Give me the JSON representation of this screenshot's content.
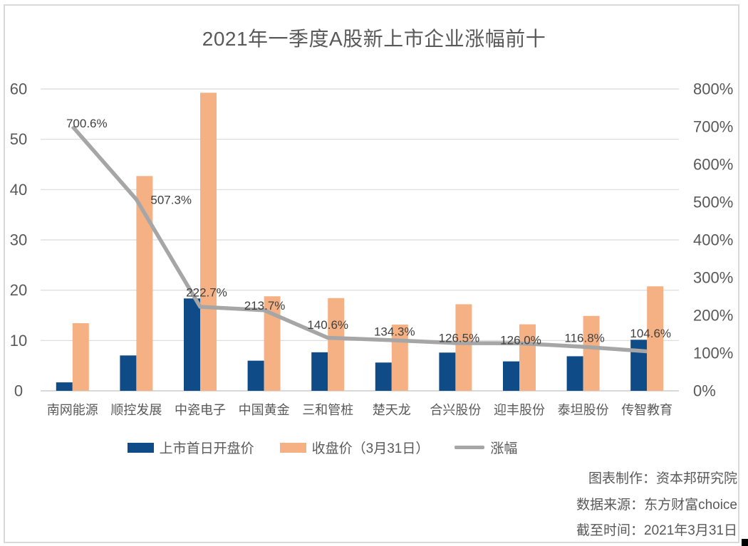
{
  "title": "2021年一季度A股新上市企业涨幅前十",
  "legend": {
    "items": [
      {
        "label": "上市首日开盘价",
        "color": "#0F4C87",
        "swatch": "bar"
      },
      {
        "label": "收盘价（3月31日）",
        "color": "#F5B183",
        "swatch": "bar"
      },
      {
        "label": "涨幅",
        "color": "#A6A6A6",
        "swatch": "line"
      }
    ]
  },
  "footer": {
    "lines": [
      "图表制作：资本邦研究院",
      "数据来源：东方财富choice",
      "截至时间：2021年3月31日"
    ]
  },
  "colors": {
    "bar_open": "#0F4C87",
    "bar_close": "#F5B183",
    "gain_line": "#A6A6A6",
    "gridline": "#D9D9D9",
    "axis_text": "#595959"
  },
  "chart_data": {
    "type": "bar",
    "subtype": "combo-bar-line-dual-axis",
    "title": "2021年一季度A股新上市企业涨幅前十",
    "categories": [
      "南网能源",
      "顺控发展",
      "中瓷电子",
      "中国黄金",
      "三和管桩",
      "楚天龙",
      "合兴股份",
      "迎丰股份",
      "泰坦股份",
      "传智教育"
    ],
    "series": [
      {
        "name": "上市首日开盘价",
        "type": "bar",
        "axis": "left",
        "color": "#0F4C87",
        "values": [
          1.68,
          7.03,
          18.36,
          5.99,
          7.66,
          5.62,
          7.6,
          5.85,
          6.87,
          10.15
        ]
      },
      {
        "name": "收盘价（3月31日）",
        "type": "bar",
        "axis": "left",
        "color": "#F5B183",
        "values": [
          13.45,
          42.69,
          59.25,
          18.79,
          18.43,
          13.17,
          17.21,
          13.22,
          14.89,
          20.77
        ]
      },
      {
        "name": "涨幅",
        "type": "line",
        "axis": "right",
        "color": "#A6A6A6",
        "values": [
          700.6,
          507.3,
          222.7,
          213.7,
          140.6,
          134.3,
          126.5,
          126.0,
          116.8,
          104.6
        ],
        "labels": [
          "700.6%",
          "507.3%",
          "222.7%",
          "213.7%",
          "140.6%",
          "134.3%",
          "126.5%",
          "126.0%",
          "116.8%",
          "104.6%"
        ]
      }
    ],
    "left_axis": {
      "min": 0,
      "max": 60,
      "step": 10,
      "tick_labels": [
        "0",
        "10",
        "20",
        "30",
        "40",
        "50",
        "60"
      ]
    },
    "right_axis": {
      "min": 0,
      "max": 800,
      "step": 100,
      "tick_labels": [
        "0%",
        "100%",
        "200%",
        "300%",
        "400%",
        "500%",
        "600%",
        "700%",
        "800%"
      ]
    },
    "grid": true,
    "legend_position": "bottom"
  }
}
